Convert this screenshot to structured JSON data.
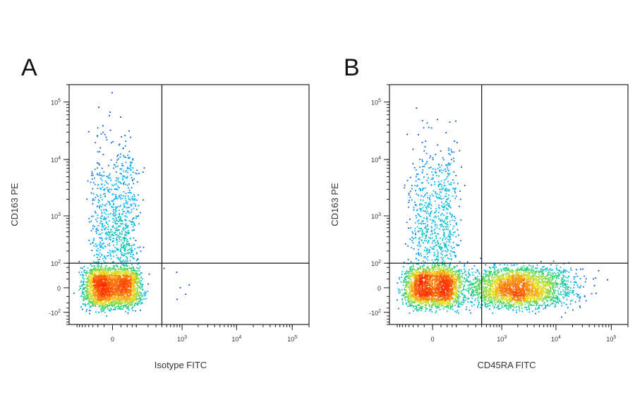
{
  "chart_data": [
    {
      "type": "scatter",
      "panel_label": "A",
      "xlabel": "Isotype FITC",
      "ylabel": "CD163 PE",
      "x_scale": "biexponential",
      "y_scale": "biexponential",
      "x_ticks": [
        "0",
        "10^3",
        "10^4",
        "10^5"
      ],
      "y_ticks": [
        "-10^2",
        "0",
        "10^2",
        "10^3",
        "10^4",
        "10^5"
      ],
      "xlim": [
        -300,
        200000
      ],
      "ylim": [
        -200,
        200000
      ],
      "quadrant_gate": {
        "x": 400,
        "y": 100
      },
      "grid": false,
      "legend": "none",
      "density_colors": [
        "#0a22c8",
        "#00b4ff",
        "#2fd36a",
        "#f0e020",
        "#ff2a00"
      ],
      "populations": [
        {
          "name_visible": false,
          "x_center": 0,
          "y_center": 0,
          "x_spread": 60,
          "y_spread": 35,
          "count": 2600
        },
        {
          "name_visible": false,
          "x_center": 10,
          "y_center": 700,
          "x_spread": 50,
          "y_spread": 0.75,
          "count": 900
        },
        {
          "name_visible": false,
          "x_center": 700,
          "y_center": 10,
          "x_spread": 0.3,
          "y_spread": 40,
          "count": 6
        }
      ]
    },
    {
      "type": "scatter",
      "panel_label": "B",
      "xlabel": "CD45RA FITC",
      "ylabel": "CD163 PE",
      "x_scale": "biexponential",
      "y_scale": "biexponential",
      "x_ticks": [
        "0",
        "10^3",
        "10^4",
        "10^5"
      ],
      "y_ticks": [
        "-10^2",
        "0",
        "10^2",
        "10^3",
        "10^4",
        "10^5"
      ],
      "xlim": [
        -300,
        200000
      ],
      "ylim": [
        -200,
        200000
      ],
      "quadrant_gate": {
        "x": 400,
        "y": 100
      },
      "grid": false,
      "legend": "none",
      "density_colors": [
        "#0a22c8",
        "#00b4ff",
        "#2fd36a",
        "#f0e020",
        "#ff2a00"
      ],
      "populations": [
        {
          "name_visible": false,
          "x_center": 0,
          "y_center": 0,
          "x_spread": 60,
          "y_spread": 35,
          "count": 2200
        },
        {
          "name_visible": false,
          "x_center": 10,
          "y_center": 700,
          "x_spread": 50,
          "y_spread": 0.75,
          "count": 800
        },
        {
          "name_visible": false,
          "x_center": 2500,
          "y_center": 0,
          "x_spread": 0.45,
          "y_spread": 35,
          "count": 2000
        },
        {
          "name_visible": false,
          "x_center": 900,
          "y_center": 0,
          "x_spread": 0.5,
          "y_spread": 30,
          "count": 700
        }
      ]
    }
  ]
}
